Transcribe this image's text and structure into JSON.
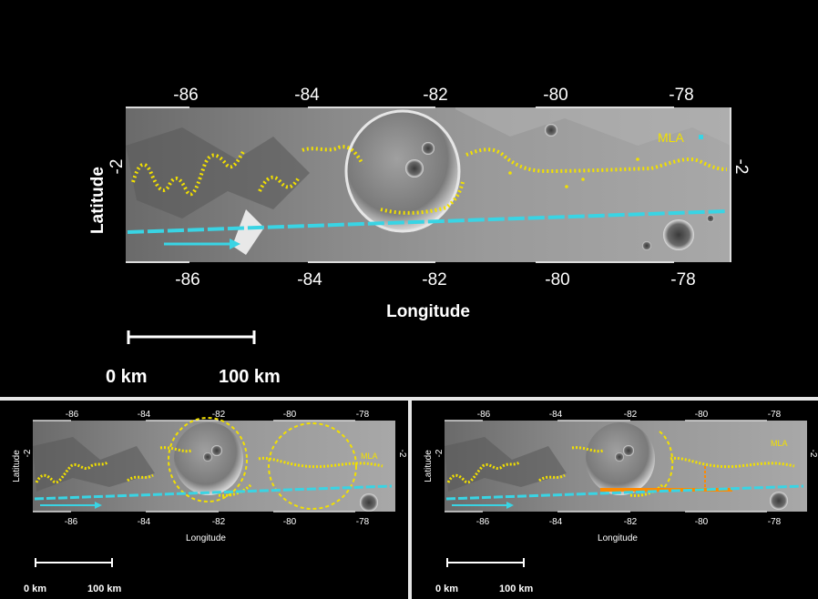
{
  "main_panel": {
    "top_ticks": [
      "-86",
      "-84",
      "-82",
      "-80",
      "-78"
    ],
    "bottom_ticks": [
      "-86",
      "-84",
      "-82",
      "-80",
      "-78"
    ],
    "y_axis_label": "Latitude",
    "y_tick_left": "-2",
    "y_tick_right": "-2",
    "x_axis_label": "Longitude",
    "legend_label": "MLA",
    "scale_left": "0 km",
    "scale_right": "100 km"
  },
  "inset_left": {
    "top_ticks": [
      "-86",
      "-84",
      "-82",
      "-80",
      "-78"
    ],
    "bottom_ticks": [
      "-86",
      "-84",
      "-82",
      "-80",
      "-78"
    ],
    "y_axis_label": "Latitude",
    "y_tick_left": "-2",
    "y_tick_right": "-2",
    "x_axis_label": "Longitude",
    "legend_label": "MLA",
    "scale_left": "0 km",
    "scale_right": "100 km"
  },
  "inset_right": {
    "top_ticks": [
      "-86",
      "-84",
      "-82",
      "-80",
      "-78"
    ],
    "bottom_ticks": [
      "-86",
      "-84",
      "-82",
      "-80",
      "-78"
    ],
    "y_axis_label": "Latitude",
    "y_tick_left": "-2",
    "y_tick_right": "-2",
    "x_axis_label": "Longitude",
    "legend_label": "MLA",
    "scale_left": "0 km",
    "scale_right": "100 km"
  },
  "colors": {
    "background": "#000000",
    "mla_track": "#f2e000",
    "ground_track": "#39d4e4",
    "highlight": "#ff8a00",
    "divider": "#e6e6e6"
  }
}
